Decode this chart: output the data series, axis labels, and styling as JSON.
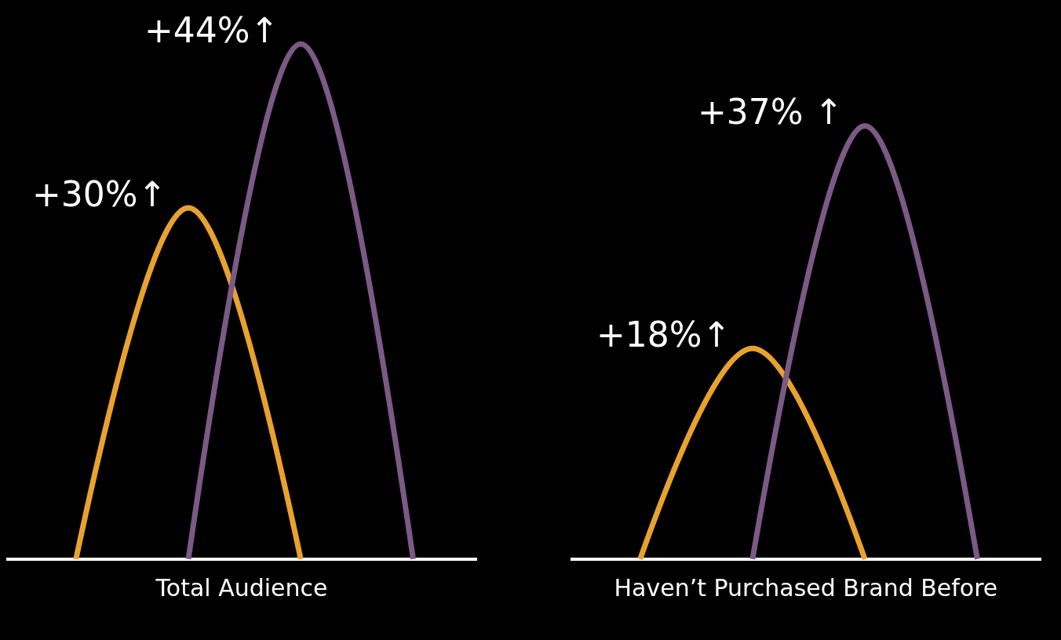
{
  "chart_data": [
    {
      "type": "line",
      "xlabel": "Total Audience",
      "categories": [
        null,
        null,
        null,
        null
      ],
      "tick_labels": false,
      "series": [
        {
          "color": "#e8a22f",
          "values": [
            0,
            30,
            0,
            null
          ],
          "value_labels": [
            null,
            "+30%↑",
            null,
            null
          ]
        },
        {
          "color": "#7b5a85",
          "values": [
            null,
            0,
            44,
            0
          ],
          "value_labels": [
            null,
            null,
            "+44%↑",
            null
          ]
        }
      ]
    },
    {
      "type": "line",
      "xlabel": "Haven’t Purchased Brand Before",
      "categories": [
        null,
        null,
        null,
        null
      ],
      "tick_labels": false,
      "series": [
        {
          "color": "#e8a22f",
          "values": [
            0,
            18,
            0,
            null
          ],
          "value_labels": [
            null,
            "+18%↑",
            null,
            null
          ]
        },
        {
          "color": "#7b5a85",
          "values": [
            null,
            0,
            37,
            0
          ],
          "value_labels": [
            null,
            null,
            "+37% ↑",
            null
          ]
        }
      ]
    }
  ]
}
